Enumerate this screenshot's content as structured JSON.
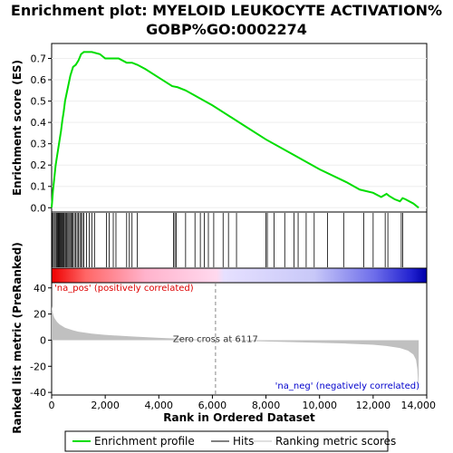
{
  "chart_data": {
    "type": "line",
    "title_line1": "Enrichment plot: MYELOID LEUKOCYTE ACTIVATION%",
    "title_line2": "GOBP%GO:0002274",
    "ylabel_top": "Enrichment score (ES)",
    "ylabel_bottom": "Ranked list metric (PreRanked)",
    "xlabel": "Rank in Ordered Dataset",
    "xlim": [
      0,
      14000
    ],
    "x_ticks": [
      0,
      2000,
      4000,
      6000,
      8000,
      10000,
      12000,
      14000
    ],
    "x_tick_labels": [
      "0",
      "2,000",
      "4,000",
      "6,000",
      "8,000",
      "10,000",
      "12,000",
      "14,000"
    ],
    "es_ylim": [
      -0.02,
      0.77
    ],
    "es_ticks": [
      0.0,
      0.1,
      0.2,
      0.3,
      0.4,
      0.5,
      0.6,
      0.7
    ],
    "es_tick_labels": [
      "0.0",
      "0.1",
      "0.2",
      "0.3",
      "0.4",
      "0.5",
      "0.6",
      "0.7"
    ],
    "metric_ylim": [
      -42,
      44
    ],
    "metric_ticks": [
      -40,
      -20,
      0,
      20,
      40
    ],
    "metric_tick_labels": [
      "-40",
      "-20",
      "0",
      "20",
      "40"
    ],
    "zero_cross_label": "Zero cross at 6117",
    "zero_cross_x": 6117,
    "na_pos_label": "'na_pos' (positively correlated)",
    "na_neg_label": "'na_neg' (negatively correlated)",
    "n_genes": 13700,
    "es_curve": {
      "x": [
        0,
        50,
        100,
        150,
        200,
        250,
        300,
        350,
        400,
        450,
        500,
        550,
        600,
        650,
        700,
        750,
        800,
        900,
        1000,
        1100,
        1200,
        1300,
        1500,
        1800,
        2000,
        2200,
        2500,
        2800,
        3000,
        3200,
        3500,
        4000,
        4500,
        4700,
        5000,
        6000,
        7000,
        8000,
        9000,
        10000,
        11000,
        11500,
        12000,
        12300,
        12500,
        12600,
        12800,
        13000,
        13100,
        13200,
        13500,
        13700
      ],
      "y": [
        0.0,
        0.08,
        0.14,
        0.2,
        0.24,
        0.28,
        0.32,
        0.36,
        0.41,
        0.45,
        0.5,
        0.53,
        0.56,
        0.59,
        0.62,
        0.64,
        0.66,
        0.67,
        0.69,
        0.72,
        0.73,
        0.73,
        0.73,
        0.72,
        0.7,
        0.7,
        0.7,
        0.68,
        0.68,
        0.67,
        0.65,
        0.61,
        0.57,
        0.565,
        0.55,
        0.48,
        0.4,
        0.32,
        0.25,
        0.18,
        0.12,
        0.085,
        0.07,
        0.05,
        0.065,
        0.055,
        0.04,
        0.03,
        0.045,
        0.04,
        0.02,
        0.0
      ]
    },
    "hits": [
      20,
      60,
      100,
      140,
      180,
      210,
      240,
      270,
      300,
      330,
      360,
      390,
      420,
      450,
      480,
      520,
      560,
      600,
      640,
      680,
      720,
      760,
      800,
      850,
      900,
      950,
      1000,
      1050,
      1100,
      1150,
      1200,
      1300,
      1400,
      1500,
      1600,
      2050,
      2150,
      2300,
      2400,
      2800,
      2900,
      3000,
      3200,
      4550,
      4600,
      4650,
      5000,
      5350,
      5550,
      5700,
      5850,
      6050,
      6400,
      6600,
      6900,
      8000,
      8050,
      8300,
      8700,
      9050,
      9200,
      9500,
      9800,
      10300,
      10900,
      11650,
      12000,
      12450,
      12550,
      13050,
      13100
    ],
    "metric_curve": {
      "x": [
        0,
        50,
        100,
        200,
        300,
        500,
        800,
        1000,
        1500,
        2000,
        3000,
        4000,
        5000,
        6117,
        7000,
        8000,
        9000,
        10000,
        11000,
        12000,
        12500,
        13000,
        13300,
        13500,
        13600,
        13650,
        13700
      ],
      "y": [
        26,
        20,
        17,
        14,
        12,
        9.5,
        7.5,
        6.5,
        5,
        4,
        2.8,
        1.8,
        0.9,
        0,
        -0.5,
        -1,
        -1.5,
        -2,
        -2.6,
        -3.5,
        -4.5,
        -6,
        -8,
        -11,
        -15,
        -22,
        -40
      ]
    },
    "legend": {
      "enrichment_profile": "Enrichment profile",
      "hits": "Hits",
      "ranking_metric_scores": "Ranking metric scores"
    },
    "colors": {
      "es_line": "#00dd00",
      "hits": "#000000",
      "metric_fill": "#c0c0c0",
      "pos_red": "#ee0000",
      "neg_blue": "#0000cc",
      "pos_label": "#dd0000",
      "neg_label": "#0000cc"
    }
  }
}
